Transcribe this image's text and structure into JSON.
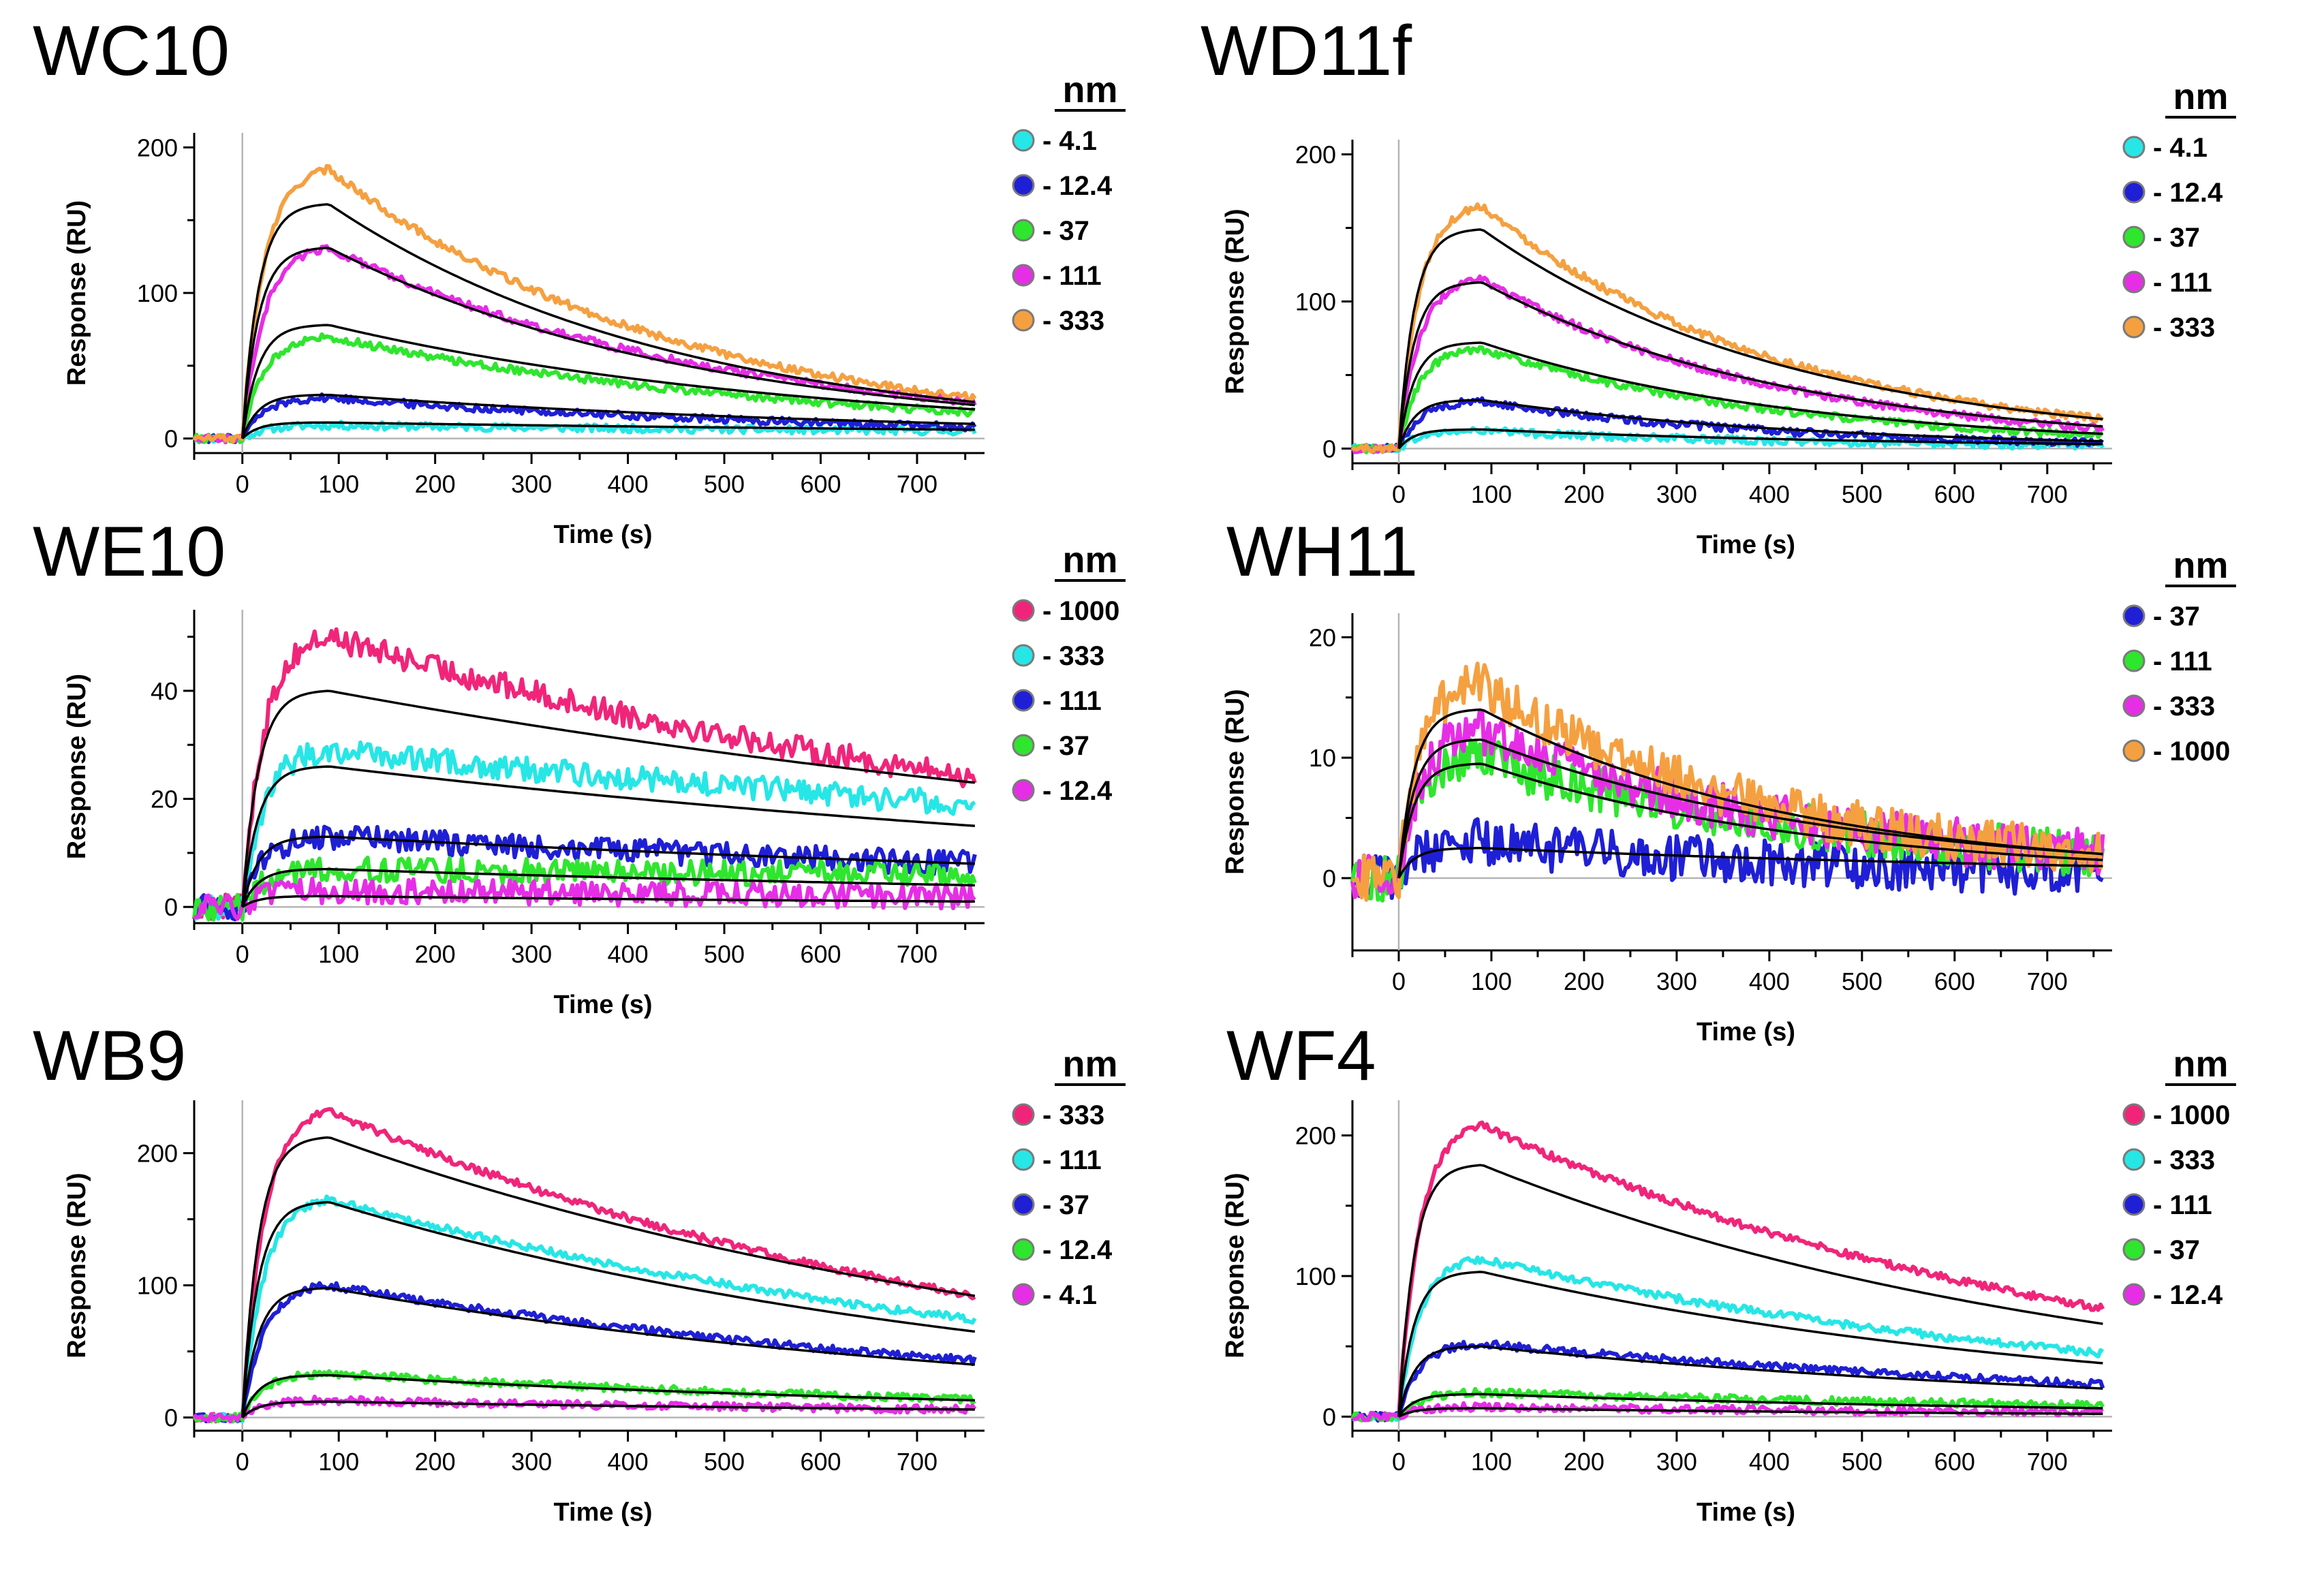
{
  "figure": {
    "legend_unit": "nm",
    "xlabel": "Time (s)",
    "ylabel": "Response (RU)"
  },
  "chart_data": [
    {
      "type": "line",
      "title": "WC10",
      "xlabel": "Time (s)",
      "ylabel": "Response (RU)",
      "xlim": [
        -50,
        770
      ],
      "ylim": [
        -10,
        210
      ],
      "xticks": [
        0,
        100,
        200,
        300,
        400,
        500,
        600,
        700
      ],
      "yticks": [
        0,
        100,
        200
      ],
      "legend_title": "nm",
      "series": [
        {
          "name": "- 4.1",
          "color": "#27e6e6",
          "peak": 9,
          "fit_peak": 11,
          "final": 5,
          "fit_final": 6,
          "t_peak": 90
        },
        {
          "name": "- 12.4",
          "color": "#1f1fd6",
          "peak": 28,
          "fit_peak": 30,
          "final": 8,
          "fit_final": 10,
          "t_peak": 90
        },
        {
          "name": "- 37",
          "color": "#2ee62e",
          "peak": 70,
          "fit_peak": 78,
          "final": 18,
          "fit_final": 20,
          "t_peak": 90
        },
        {
          "name": "- 111",
          "color": "#e62ee6",
          "peak": 131,
          "fit_peak": 131,
          "final": 25,
          "fit_final": 23,
          "t_peak": 90
        },
        {
          "name": "- 333",
          "color": "#f5a040",
          "peak": 185,
          "fit_peak": 161,
          "final": 28,
          "fit_final": 25,
          "t_peak": 90
        }
      ]
    },
    {
      "type": "line",
      "title": "WD11f",
      "xlabel": "Time (s)",
      "ylabel": "Response (RU)",
      "xlim": [
        -50,
        770
      ],
      "ylim": [
        -10,
        210
      ],
      "xticks": [
        0,
        100,
        200,
        300,
        400,
        500,
        600,
        700
      ],
      "yticks": [
        0,
        100,
        200
      ],
      "legend_title": "nm",
      "series": [
        {
          "name": "- 4.1",
          "color": "#27e6e6",
          "peak": 12,
          "fit_peak": 13,
          "final": 2,
          "fit_final": 3,
          "t_peak": 90
        },
        {
          "name": "- 12.4",
          "color": "#1f1fd6",
          "peak": 32,
          "fit_peak": 33,
          "final": 4,
          "fit_final": 5,
          "t_peak": 90
        },
        {
          "name": "- 37",
          "color": "#2ee62e",
          "peak": 68,
          "fit_peak": 72,
          "final": 9,
          "fit_final": 10,
          "t_peak": 90
        },
        {
          "name": "- 111",
          "color": "#e62ee6",
          "peak": 115,
          "fit_peak": 113,
          "final": 14,
          "fit_final": 15,
          "t_peak": 90
        },
        {
          "name": "- 333",
          "color": "#f5a040",
          "peak": 165,
          "fit_peak": 149,
          "final": 20,
          "fit_final": 20,
          "t_peak": 90
        }
      ]
    },
    {
      "type": "line",
      "title": "WE10",
      "xlabel": "Time (s)",
      "ylabel": "Response (RU)",
      "xlim": [
        -50,
        770
      ],
      "ylim": [
        -3,
        55
      ],
      "xticks": [
        0,
        100,
        200,
        300,
        400,
        500,
        600,
        700
      ],
      "yticks": [
        0,
        20,
        40
      ],
      "legend_title": "nm",
      "series": [
        {
          "name": "- 1000",
          "color": "#f0257a",
          "peak": 50,
          "fit_peak": 40,
          "final": 24,
          "fit_final": 23,
          "t_peak": 90
        },
        {
          "name": "- 333",
          "color": "#27e6e6",
          "peak": 29,
          "fit_peak": 26,
          "final": 19,
          "fit_final": 15,
          "t_peak": 90
        },
        {
          "name": "- 111",
          "color": "#1f1fd6",
          "peak": 13,
          "fit_peak": 13,
          "final": 8,
          "fit_final": 8,
          "t_peak": 90
        },
        {
          "name": "- 37",
          "color": "#2ee62e",
          "peak": 7,
          "fit_peak": 7,
          "final": 6,
          "fit_final": 4,
          "t_peak": 90
        },
        {
          "name": "- 12.4",
          "color": "#e62ee6",
          "peak": 3,
          "fit_peak": 2,
          "final": 2,
          "fit_final": 1,
          "t_peak": 90
        }
      ]
    },
    {
      "type": "line",
      "title": "WH11",
      "xlabel": "Time (s)",
      "ylabel": "Response (RU)",
      "xlim": [
        -50,
        770
      ],
      "ylim": [
        -6,
        22
      ],
      "xticks": [
        0,
        100,
        200,
        300,
        400,
        500,
        600,
        700
      ],
      "yticks": [
        0,
        10,
        20
      ],
      "legend_title": "nm",
      "series": [
        {
          "name": "- 37",
          "color": "#1f1fd6",
          "peak": 3,
          "fit_peak": 2.5,
          "final": 0.5,
          "fit_final": 1,
          "t_peak": 90
        },
        {
          "name": "- 111",
          "color": "#2ee62e",
          "peak": 10,
          "fit_peak": 9.5,
          "final": 2,
          "fit_final": 1.5,
          "t_peak": 90
        },
        {
          "name": "- 333",
          "color": "#e62ee6",
          "peak": 12,
          "fit_peak": 11.5,
          "final": 2,
          "fit_final": 2,
          "t_peak": 90
        },
        {
          "name": "- 1000",
          "color": "#f5a040",
          "peak": 16,
          "fit_peak": 14,
          "final": 2,
          "fit_final": 2,
          "t_peak": 90
        }
      ]
    },
    {
      "type": "line",
      "title": "WB9",
      "xlabel": "Time (s)",
      "ylabel": "Response (RU)",
      "xlim": [
        -50,
        770
      ],
      "ylim": [
        -10,
        240
      ],
      "xticks": [
        0,
        100,
        200,
        300,
        400,
        500,
        600,
        700
      ],
      "yticks": [
        0,
        100,
        200
      ],
      "legend_title": "nm",
      "series": [
        {
          "name": "- 333",
          "color": "#f0257a",
          "peak": 232,
          "fit_peak": 212,
          "final": 92,
          "fit_final": 92,
          "t_peak": 90
        },
        {
          "name": "- 111",
          "color": "#27e6e6",
          "peak": 165,
          "fit_peak": 163,
          "final": 74,
          "fit_final": 65,
          "t_peak": 90
        },
        {
          "name": "- 37",
          "color": "#1f1fd6",
          "peak": 100,
          "fit_peak": 98,
          "final": 43,
          "fit_final": 40,
          "t_peak": 90
        },
        {
          "name": "- 12.4",
          "color": "#2ee62e",
          "peak": 33,
          "fit_peak": 32,
          "final": 14,
          "fit_final": 13,
          "t_peak": 90
        },
        {
          "name": "- 4.1",
          "color": "#e62ee6",
          "peak": 13,
          "fit_peak": 12,
          "final": 6,
          "fit_final": 6,
          "t_peak": 90
        }
      ]
    },
    {
      "type": "line",
      "title": "WF4",
      "xlabel": "Time (s)",
      "ylabel": "Response (RU)",
      "xlim": [
        -50,
        770
      ],
      "ylim": [
        -10,
        225
      ],
      "xticks": [
        0,
        100,
        200,
        300,
        400,
        500,
        600,
        700
      ],
      "yticks": [
        0,
        100,
        200
      ],
      "legend_title": "nm",
      "series": [
        {
          "name": "- 1000",
          "color": "#f0257a",
          "peak": 207,
          "fit_peak": 179,
          "final": 77,
          "fit_final": 66,
          "t_peak": 90
        },
        {
          "name": "- 333",
          "color": "#27e6e6",
          "peak": 112,
          "fit_peak": 103,
          "final": 45,
          "fit_final": 38,
          "t_peak": 90
        },
        {
          "name": "- 111",
          "color": "#1f1fd6",
          "peak": 52,
          "fit_peak": 50,
          "final": 23,
          "fit_final": 20,
          "t_peak": 90
        },
        {
          "name": "- 37",
          "color": "#2ee62e",
          "peak": 17,
          "fit_peak": 16,
          "final": 8,
          "fit_final": 6,
          "t_peak": 90
        },
        {
          "name": "- 12.4",
          "color": "#e62ee6",
          "peak": 7,
          "fit_peak": 6,
          "final": 3,
          "fit_final": 2,
          "t_peak": 90
        }
      ]
    }
  ]
}
